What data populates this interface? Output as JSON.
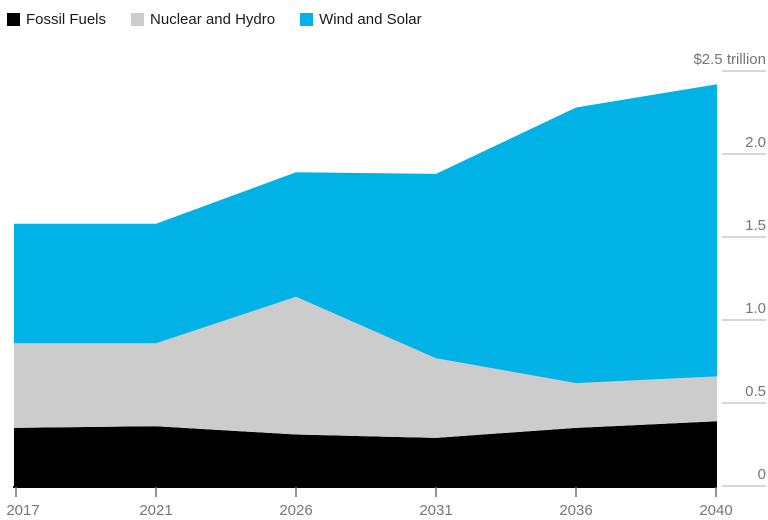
{
  "chart_data": {
    "type": "area",
    "stacked": true,
    "title": "",
    "x_categories": [
      "2017",
      "2021",
      "2026",
      "2031",
      "2036",
      "2040"
    ],
    "series": [
      {
        "name": "Fossil Fuels",
        "color": "#000000",
        "values": [
          0.35,
          0.36,
          0.31,
          0.29,
          0.35,
          0.39
        ]
      },
      {
        "name": "Nuclear and Hydro",
        "color": "#cccccc",
        "values": [
          0.51,
          0.5,
          0.83,
          0.48,
          0.27,
          0.27
        ]
      },
      {
        "name": "Wind and Solar",
        "color": "#00b2e6",
        "values": [
          0.72,
          0.72,
          0.75,
          1.11,
          1.66,
          1.76
        ]
      }
    ],
    "y_axis": {
      "side": "right",
      "unit": "trillion",
      "ylim": [
        0,
        2.5
      ],
      "ticks": [
        {
          "value": 0.0,
          "label": "0"
        },
        {
          "value": 0.5,
          "label": "0.5"
        },
        {
          "value": 1.0,
          "label": "1.0"
        },
        {
          "value": 1.5,
          "label": "1.5"
        },
        {
          "value": 2.0,
          "label": "2.0"
        },
        {
          "value": 2.5,
          "label": "$2.5 trillion"
        }
      ]
    },
    "legend_position": "top-left",
    "grid": false
  },
  "colors": {
    "background": "#ffffff",
    "axis_label": "#767676",
    "y_tick_line": "#cccccc",
    "x_tick_mark": "#6f6f6f",
    "axis_line": "#000000",
    "legend_text": "#1a1a1a"
  }
}
